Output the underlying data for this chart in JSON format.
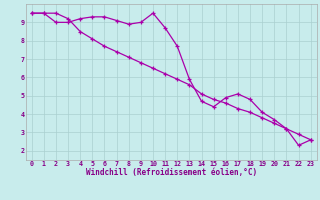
{
  "xlabel": "Windchill (Refroidissement éolien,°C)",
  "x_hours": [
    0,
    1,
    2,
    3,
    4,
    5,
    6,
    7,
    8,
    9,
    10,
    11,
    12,
    13,
    14,
    15,
    16,
    17,
    18,
    19,
    20,
    21,
    22,
    23
  ],
  "line1": [
    9.5,
    9.5,
    9.0,
    9.0,
    9.2,
    9.3,
    9.3,
    9.1,
    8.9,
    9.0,
    9.5,
    8.7,
    7.7,
    5.9,
    4.7,
    4.4,
    4.9,
    5.1,
    4.8,
    4.1,
    3.7,
    3.2,
    2.3,
    2.6
  ],
  "line2": [
    9.5,
    9.5,
    9.5,
    9.2,
    8.5,
    8.1,
    7.7,
    7.4,
    7.1,
    6.8,
    6.5,
    6.2,
    5.9,
    5.6,
    5.1,
    4.8,
    4.6,
    4.3,
    4.1,
    3.8,
    3.5,
    3.2,
    2.9,
    2.6
  ],
  "line_color": "#aa00aa",
  "bg_color": "#c8ecec",
  "grid_color": "#aad0d0",
  "ylim": [
    1.5,
    10.0
  ],
  "xlim": [
    -0.5,
    23.5
  ],
  "yticks": [
    2,
    3,
    4,
    5,
    6,
    7,
    8,
    9
  ],
  "xticks": [
    0,
    1,
    2,
    3,
    4,
    5,
    6,
    7,
    8,
    9,
    10,
    11,
    12,
    13,
    14,
    15,
    16,
    17,
    18,
    19,
    20,
    21,
    22,
    23
  ],
  "tick_fontsize": 4.8,
  "xlabel_fontsize": 5.5,
  "marker_size": 3.0,
  "line_width": 0.9
}
